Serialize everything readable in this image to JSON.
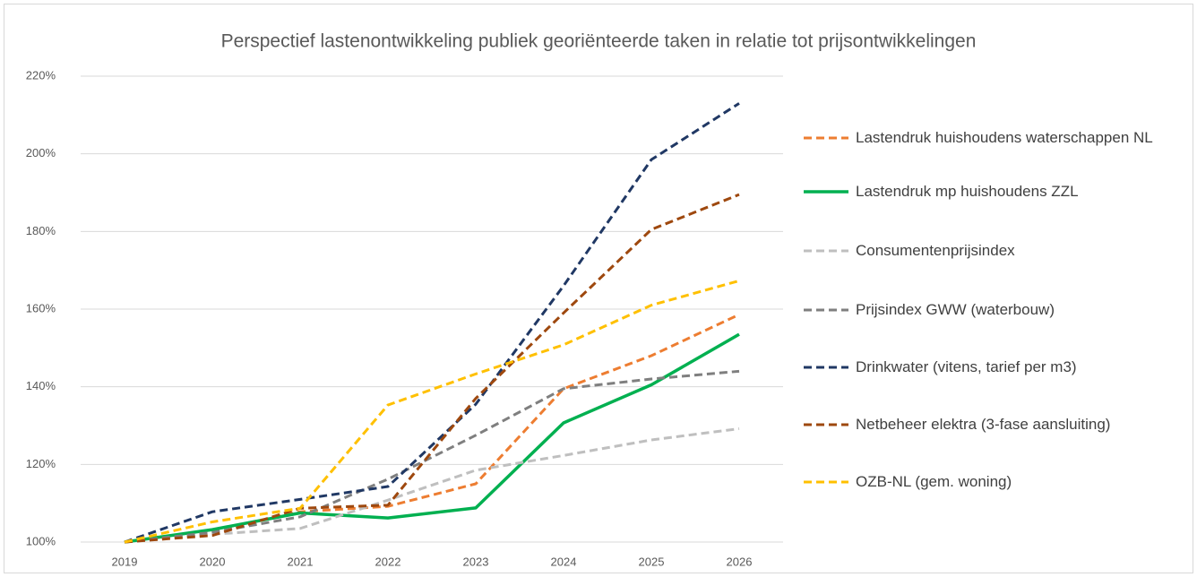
{
  "chart_data": {
    "type": "line",
    "title": "Perspectief lastenontwikkeling publiek georiënteerde taken in relatie tot prijsontwikkelingen",
    "categories": [
      "2019",
      "2020",
      "2021",
      "2022",
      "2023",
      "2024",
      "2025",
      "2026"
    ],
    "ylim": [
      100,
      220
    ],
    "yticks": [
      {
        "value": 100,
        "label": "100%"
      },
      {
        "value": 120,
        "label": "120%"
      },
      {
        "value": 140,
        "label": "140%"
      },
      {
        "value": 160,
        "label": "160%"
      },
      {
        "value": 180,
        "label": "180%"
      },
      {
        "value": 200,
        "label": "200%"
      },
      {
        "value": 220,
        "label": "220%"
      }
    ],
    "grid": true,
    "legend": "right",
    "series": [
      {
        "name": "Lastendruk huishoudens waterschappen NL",
        "color": "#ED7D31",
        "dashed": true,
        "values": [
          100,
          103,
          107.8,
          109.2,
          115,
          139.5,
          148,
          158.6
        ]
      },
      {
        "name": "Lastendruk mp huishoudens ZZL",
        "color": "#00B050",
        "dashed": false,
        "values": [
          100,
          103.2,
          107.5,
          106.2,
          108.8,
          130.7,
          140.5,
          153.5
        ]
      },
      {
        "name": "Consumentenprijsindex",
        "color": "#BFBFBF",
        "dashed": true,
        "values": [
          100,
          102,
          103.5,
          110.8,
          118.5,
          122.3,
          126.3,
          129.2
        ]
      },
      {
        "name": "Prijsindex GWW (waterbouw)",
        "color": "#7F7F7F",
        "dashed": true,
        "values": [
          100,
          102.5,
          106.5,
          116.2,
          127.5,
          139.5,
          142,
          144
        ]
      },
      {
        "name": "Drinkwater (vitens, tarief per m3)",
        "color": "#203864",
        "dashed": true,
        "values": [
          100,
          107.8,
          111,
          114.3,
          135.5,
          166,
          198.5,
          213
        ]
      },
      {
        "name": "Netbeheer elektra (3-fase aansluiting)",
        "color": "#9E480E",
        "dashed": true,
        "values": [
          100,
          101.7,
          108.7,
          109.5,
          137,
          159,
          180.5,
          189.5
        ]
      },
      {
        "name": "OZB-NL (gem. woning)",
        "color": "#FFC000",
        "dashed": true,
        "values": [
          100,
          105.2,
          108.7,
          135.3,
          143.3,
          150.8,
          161,
          167.3
        ]
      }
    ]
  }
}
